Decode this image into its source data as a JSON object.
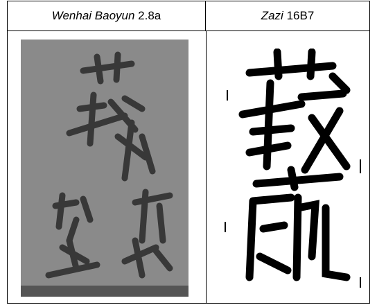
{
  "table": {
    "header": [
      {
        "italic": "Wenhai Baoyun",
        "text": "2.8a"
      },
      {
        "italic": "Zazi",
        "text": "16B7"
      }
    ]
  }
}
